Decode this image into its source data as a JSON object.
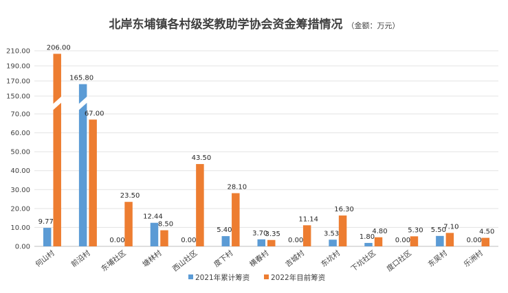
{
  "chart_data": {
    "type": "bar",
    "title": "北岸东埔镇各村级奖教助学协会资金筹措情况",
    "title_unit": "（金额：万元）",
    "categories": [
      "何山村",
      "前沿村",
      "东埔社区",
      "塘林村",
      "西山社区",
      "度下村",
      "横春村",
      "吉城村",
      "东坑村",
      "下坑社区",
      "度口社区",
      "东吴村",
      "乐洲村"
    ],
    "series": [
      {
        "name": "2021年累计筹资",
        "color": "#5B9BD5",
        "values": [
          9.77,
          165.8,
          0.0,
          12.44,
          0.0,
          5.4,
          3.7,
          0.0,
          3.53,
          1.8,
          0.0,
          5.5,
          0.0
        ],
        "labels": [
          "9.77",
          "165.80",
          "0.00",
          "12.44",
          "0.00",
          "5.40",
          "3.70",
          "0.00",
          "3.53",
          "1.80",
          "0.00",
          "5.50",
          "0.00"
        ]
      },
      {
        "name": "2022年目前筹资",
        "color": "#ED7D31",
        "values": [
          206.0,
          67.0,
          23.5,
          8.5,
          43.5,
          28.1,
          3.35,
          11.14,
          16.3,
          4.8,
          5.3,
          7.1,
          4.5
        ],
        "labels": [
          "206.00",
          "67.00",
          "23.50",
          "8.50",
          "43.50",
          "28.10",
          "3.35",
          "11.14",
          "16.30",
          "4.80",
          "5.30",
          "7.10",
          "4.50"
        ]
      }
    ],
    "axis_break": {
      "lower_max": 70,
      "upper_min": 150,
      "upper_max": 210
    },
    "yticks_lower": [
      0,
      10,
      20,
      30,
      40,
      50,
      60,
      70
    ],
    "yticks_upper": [
      150,
      170,
      190,
      210
    ],
    "ytick_labels_lower": [
      "0.00",
      "10.00",
      "20.00",
      "30.00",
      "40.00",
      "50.00",
      "60.00",
      "70.00"
    ],
    "ytick_labels_upper": [
      "150.00",
      "170.00",
      "190.00",
      "210.00"
    ],
    "grid": true,
    "legend_position": "bottom"
  }
}
